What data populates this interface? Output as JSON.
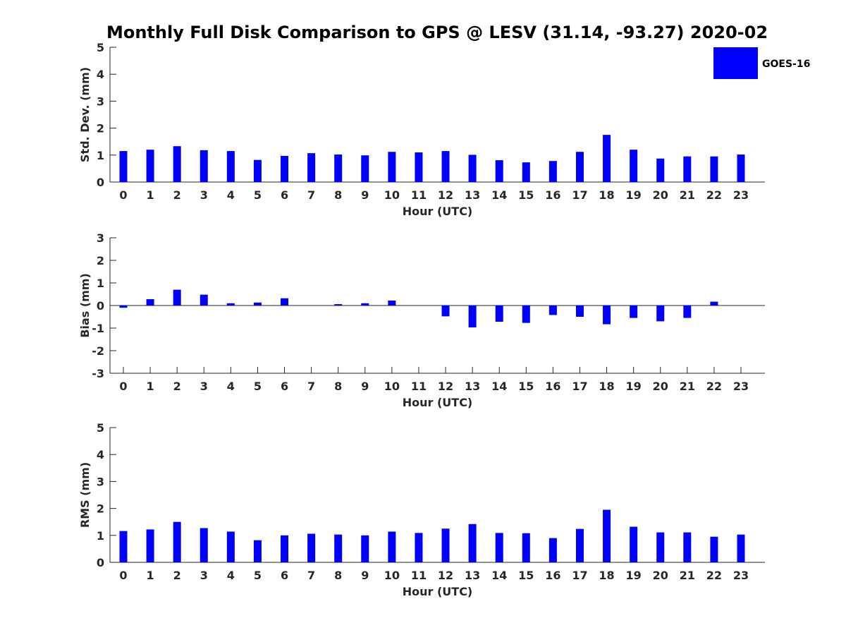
{
  "title": "Monthly Full Disk Comparison to GPS @ LESV (31.14, -93.27) 2020-02",
  "legend": {
    "label": "GOES-16",
    "color": "#0000ff",
    "placement": "top-right"
  },
  "chart_data": [
    {
      "type": "bar",
      "name": "std-dev",
      "xlabel": "Hour (UTC)",
      "ylabel": "Std. Dev. (mm)",
      "ylim": [
        0,
        5
      ],
      "yticks": [
        "0",
        "1",
        "2",
        "3",
        "4",
        "5"
      ],
      "categories": [
        "0",
        "1",
        "2",
        "3",
        "4",
        "5",
        "6",
        "7",
        "8",
        "9",
        "10",
        "11",
        "12",
        "13",
        "14",
        "15",
        "16",
        "17",
        "18",
        "19",
        "20",
        "21",
        "22",
        "23"
      ],
      "series": [
        {
          "name": "GOES-16",
          "color": "#0000ff",
          "values": [
            1.15,
            1.2,
            1.33,
            1.18,
            1.15,
            0.82,
            0.97,
            1.07,
            1.02,
            0.99,
            1.12,
            1.1,
            1.15,
            1.01,
            0.81,
            0.73,
            0.78,
            1.12,
            1.75,
            1.2,
            0.87,
            0.95,
            0.95,
            1.02
          ]
        }
      ]
    },
    {
      "type": "bar",
      "name": "bias",
      "xlabel": "Hour (UTC)",
      "ylabel": "Bias (mm)",
      "ylim": [
        -3,
        3
      ],
      "yticks": [
        "-3",
        "-2",
        "-1",
        "0",
        "1",
        "2",
        "3"
      ],
      "categories": [
        "0",
        "1",
        "2",
        "3",
        "4",
        "5",
        "6",
        "7",
        "8",
        "9",
        "10",
        "11",
        "12",
        "13",
        "14",
        "15",
        "16",
        "17",
        "18",
        "19",
        "20",
        "21",
        "22",
        "23"
      ],
      "series": [
        {
          "name": "GOES-16",
          "color": "#0000ff",
          "values": [
            -0.1,
            0.28,
            0.7,
            0.48,
            0.1,
            0.13,
            0.32,
            0.0,
            0.06,
            0.1,
            0.22,
            0.0,
            -0.48,
            -0.97,
            -0.72,
            -0.77,
            -0.42,
            -0.5,
            -0.83,
            -0.55,
            -0.7,
            -0.55,
            0.17,
            0.0
          ]
        }
      ]
    },
    {
      "type": "bar",
      "name": "rms",
      "xlabel": "Hour (UTC)",
      "ylabel": "RMS (mm)",
      "ylim": [
        0,
        5
      ],
      "yticks": [
        "0",
        "1",
        "2",
        "3",
        "4",
        "5"
      ],
      "categories": [
        "0",
        "1",
        "2",
        "3",
        "4",
        "5",
        "6",
        "7",
        "8",
        "9",
        "10",
        "11",
        "12",
        "13",
        "14",
        "15",
        "16",
        "17",
        "18",
        "19",
        "20",
        "21",
        "22",
        "23"
      ],
      "series": [
        {
          "name": "GOES-16",
          "color": "#0000ff",
          "values": [
            1.16,
            1.22,
            1.5,
            1.27,
            1.14,
            0.82,
            1.0,
            1.06,
            1.03,
            1.0,
            1.14,
            1.09,
            1.25,
            1.42,
            1.09,
            1.08,
            0.9,
            1.24,
            1.95,
            1.32,
            1.11,
            1.11,
            0.95,
            1.03
          ]
        }
      ]
    }
  ]
}
